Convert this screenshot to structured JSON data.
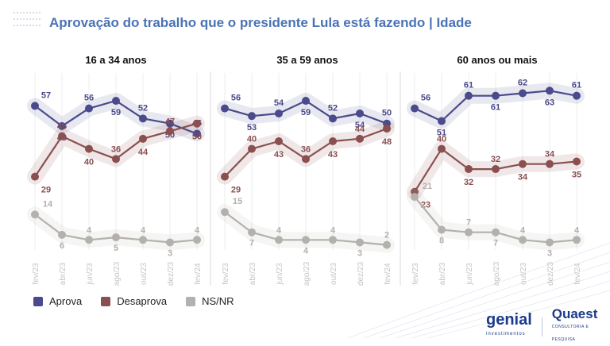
{
  "header": {
    "title": "Aprovação do trabalho que o presidente Lula está fazendo | Idade"
  },
  "legend": [
    {
      "label": "Aprova",
      "color": "#4a4a8c"
    },
    {
      "label": "Desaprova",
      "color": "#8b4f4f"
    },
    {
      "label": "NS/NR",
      "color": "#b4b0ad"
    }
  ],
  "logos": {
    "genial": "genial",
    "genial_sub": "investimentos",
    "quaest": "Quaest",
    "quaest_sub": "CONSULTORIA E PESQUISA"
  },
  "chart_data": [
    {
      "type": "line",
      "title": "16 a 34 anos",
      "categories": [
        "fev/23",
        "abr/23",
        "jun/23",
        "ago/23",
        "out/23",
        "dez/23",
        "fev/24"
      ],
      "ylim": [
        0,
        70
      ],
      "series": [
        {
          "name": "Aprova",
          "color": "#4a4a8c",
          "values": [
            57,
            49,
            56,
            59,
            52,
            50,
            46
          ]
        },
        {
          "name": "Desaprova",
          "color": "#8b4f4f",
          "values": [
            29,
            45,
            40,
            36,
            44,
            47,
            50
          ]
        },
        {
          "name": "NS/NR",
          "color": "#b4b0ad",
          "values": [
            14,
            6,
            4,
            5,
            4,
            3,
            4
          ]
        }
      ]
    },
    {
      "type": "line",
      "title": "35 a 59 anos",
      "categories": [
        "fev/23",
        "abr/23",
        "jun/23",
        "ago/23",
        "out/23",
        "dez/23",
        "fev/24"
      ],
      "ylim": [
        0,
        70
      ],
      "series": [
        {
          "name": "Aprova",
          "color": "#4a4a8c",
          "values": [
            56,
            53,
            54,
            59,
            52,
            54,
            50
          ]
        },
        {
          "name": "Desaprova",
          "color": "#8b4f4f",
          "values": [
            29,
            40,
            43,
            36,
            43,
            44,
            48
          ]
        },
        {
          "name": "NS/NR",
          "color": "#b4b0ad",
          "values": [
            15,
            7,
            4,
            4,
            4,
            3,
            2
          ]
        }
      ]
    },
    {
      "type": "line",
      "title": "60 anos ou mais",
      "categories": [
        "fev/23",
        "abr/23",
        "jun/23",
        "ago/23",
        "out/23",
        "dez/23",
        "fev/24"
      ],
      "ylim": [
        0,
        70
      ],
      "series": [
        {
          "name": "Aprova",
          "color": "#4a4a8c",
          "values": [
            56,
            51,
            61,
            61,
            62,
            63,
            61
          ]
        },
        {
          "name": "Desaprova",
          "color": "#8b4f4f",
          "values": [
            23,
            40,
            32,
            32,
            34,
            34,
            35
          ]
        },
        {
          "name": "NS/NR",
          "color": "#b4b0ad",
          "values": [
            21,
            8,
            7,
            7,
            4,
            3,
            4
          ]
        }
      ]
    }
  ]
}
